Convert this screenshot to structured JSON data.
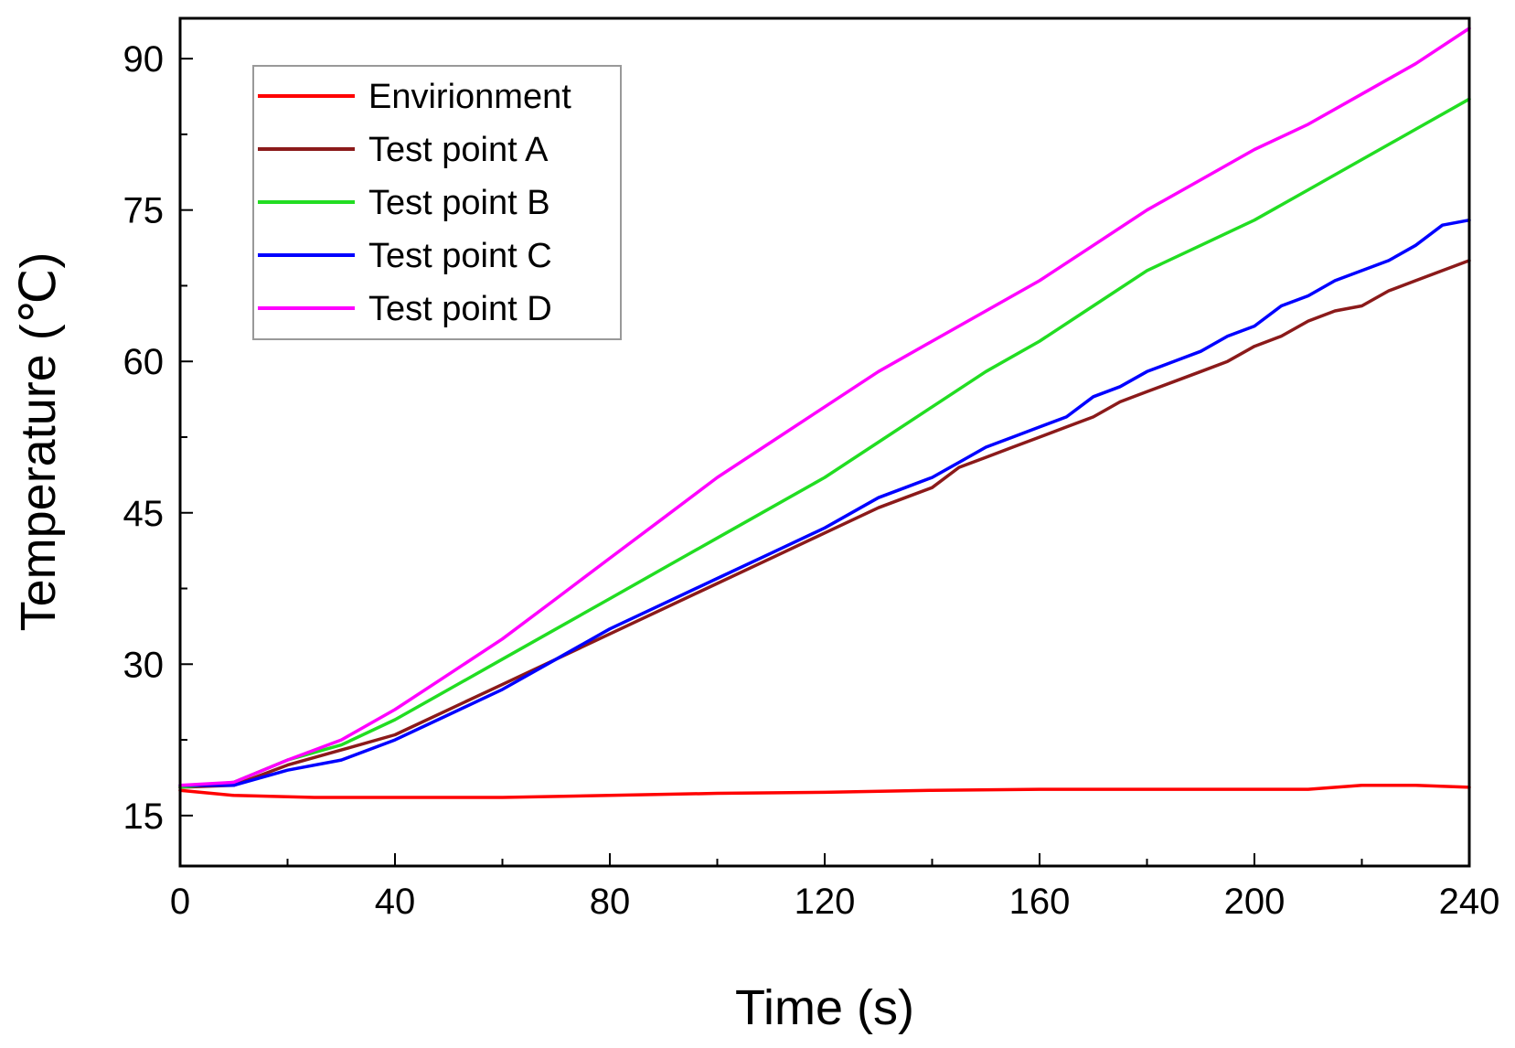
{
  "chart_data": {
    "type": "line",
    "title": "",
    "xlabel": "Time (s)",
    "ylabel": "Temperature (℃)",
    "xlim": [
      0,
      240
    ],
    "ylim": [
      10,
      94
    ],
    "xticks": [
      0,
      40,
      80,
      120,
      160,
      200,
      240
    ],
    "yticks": [
      15,
      30,
      45,
      60,
      75,
      90
    ],
    "grid": false,
    "legend_position": "top-left",
    "series": [
      {
        "name": "Envirionment",
        "color": "#ff0000",
        "points": [
          [
            0,
            17.5
          ],
          [
            10,
            17.0
          ],
          [
            25,
            16.8
          ],
          [
            40,
            16.8
          ],
          [
            60,
            16.8
          ],
          [
            80,
            17.0
          ],
          [
            100,
            17.2
          ],
          [
            120,
            17.3
          ],
          [
            140,
            17.5
          ],
          [
            160,
            17.6
          ],
          [
            180,
            17.6
          ],
          [
            200,
            17.6
          ],
          [
            210,
            17.6
          ],
          [
            220,
            18.0
          ],
          [
            230,
            18.0
          ],
          [
            240,
            17.8
          ]
        ]
      },
      {
        "name": "Test point A",
        "color": "#8b1a1a",
        "points": [
          [
            0,
            17.8
          ],
          [
            10,
            18.0
          ],
          [
            20,
            20.0
          ],
          [
            30,
            21.5
          ],
          [
            40,
            23.0
          ],
          [
            50,
            25.5
          ],
          [
            60,
            28.0
          ],
          [
            70,
            30.5
          ],
          [
            80,
            33.0
          ],
          [
            90,
            35.5
          ],
          [
            100,
            38.0
          ],
          [
            110,
            40.5
          ],
          [
            120,
            43.0
          ],
          [
            130,
            45.5
          ],
          [
            135,
            46.5
          ],
          [
            140,
            47.5
          ],
          [
            145,
            49.5
          ],
          [
            150,
            50.5
          ],
          [
            155,
            51.5
          ],
          [
            160,
            52.5
          ],
          [
            165,
            53.5
          ],
          [
            170,
            54.5
          ],
          [
            175,
            56.0
          ],
          [
            180,
            57.0
          ],
          [
            185,
            58.0
          ],
          [
            190,
            59.0
          ],
          [
            195,
            60.0
          ],
          [
            200,
            61.5
          ],
          [
            205,
            62.5
          ],
          [
            210,
            64.0
          ],
          [
            215,
            65.0
          ],
          [
            220,
            65.5
          ],
          [
            225,
            67.0
          ],
          [
            230,
            68.0
          ],
          [
            235,
            69.0
          ],
          [
            240,
            70.0
          ]
        ]
      },
      {
        "name": "Test point B",
        "color": "#22dd22",
        "points": [
          [
            0,
            17.8
          ],
          [
            10,
            18.3
          ],
          [
            20,
            20.5
          ],
          [
            30,
            22.0
          ],
          [
            40,
            24.5
          ],
          [
            50,
            27.5
          ],
          [
            60,
            30.5
          ],
          [
            70,
            33.5
          ],
          [
            80,
            36.5
          ],
          [
            90,
            39.5
          ],
          [
            100,
            42.5
          ],
          [
            110,
            45.5
          ],
          [
            120,
            48.5
          ],
          [
            130,
            52.0
          ],
          [
            140,
            55.5
          ],
          [
            150,
            59.0
          ],
          [
            160,
            62.0
          ],
          [
            170,
            65.5
          ],
          [
            180,
            69.0
          ],
          [
            190,
            71.5
          ],
          [
            200,
            74.0
          ],
          [
            210,
            77.0
          ],
          [
            220,
            80.0
          ],
          [
            230,
            83.0
          ],
          [
            240,
            86.0
          ]
        ]
      },
      {
        "name": "Test point C",
        "color": "#0000ff",
        "points": [
          [
            0,
            18.0
          ],
          [
            10,
            18.0
          ],
          [
            20,
            19.5
          ],
          [
            30,
            20.5
          ],
          [
            40,
            22.5
          ],
          [
            50,
            25.0
          ],
          [
            60,
            27.5
          ],
          [
            70,
            30.5
          ],
          [
            80,
            33.5
          ],
          [
            90,
            36.0
          ],
          [
            100,
            38.5
          ],
          [
            110,
            41.0
          ],
          [
            120,
            43.5
          ],
          [
            130,
            46.5
          ],
          [
            135,
            47.5
          ],
          [
            140,
            48.5
          ],
          [
            145,
            50.0
          ],
          [
            150,
            51.5
          ],
          [
            155,
            52.5
          ],
          [
            160,
            53.5
          ],
          [
            165,
            54.5
          ],
          [
            170,
            56.5
          ],
          [
            175,
            57.5
          ],
          [
            180,
            59.0
          ],
          [
            185,
            60.0
          ],
          [
            190,
            61.0
          ],
          [
            195,
            62.5
          ],
          [
            200,
            63.5
          ],
          [
            205,
            65.5
          ],
          [
            210,
            66.5
          ],
          [
            215,
            68.0
          ],
          [
            220,
            69.0
          ],
          [
            225,
            70.0
          ],
          [
            230,
            71.5
          ],
          [
            235,
            73.5
          ],
          [
            240,
            74.0
          ]
        ]
      },
      {
        "name": "Test point D",
        "color": "#ff00ff",
        "points": [
          [
            0,
            18.0
          ],
          [
            10,
            18.3
          ],
          [
            20,
            20.5
          ],
          [
            30,
            22.5
          ],
          [
            40,
            25.5
          ],
          [
            50,
            29.0
          ],
          [
            60,
            32.5
          ],
          [
            70,
            36.5
          ],
          [
            80,
            40.5
          ],
          [
            90,
            44.5
          ],
          [
            100,
            48.5
          ],
          [
            110,
            52.0
          ],
          [
            120,
            55.5
          ],
          [
            130,
            59.0
          ],
          [
            140,
            62.0
          ],
          [
            150,
            65.0
          ],
          [
            160,
            68.0
          ],
          [
            170,
            71.5
          ],
          [
            180,
            75.0
          ],
          [
            190,
            78.0
          ],
          [
            200,
            81.0
          ],
          [
            210,
            83.5
          ],
          [
            220,
            86.5
          ],
          [
            230,
            89.5
          ],
          [
            240,
            93.0
          ]
        ]
      }
    ]
  }
}
